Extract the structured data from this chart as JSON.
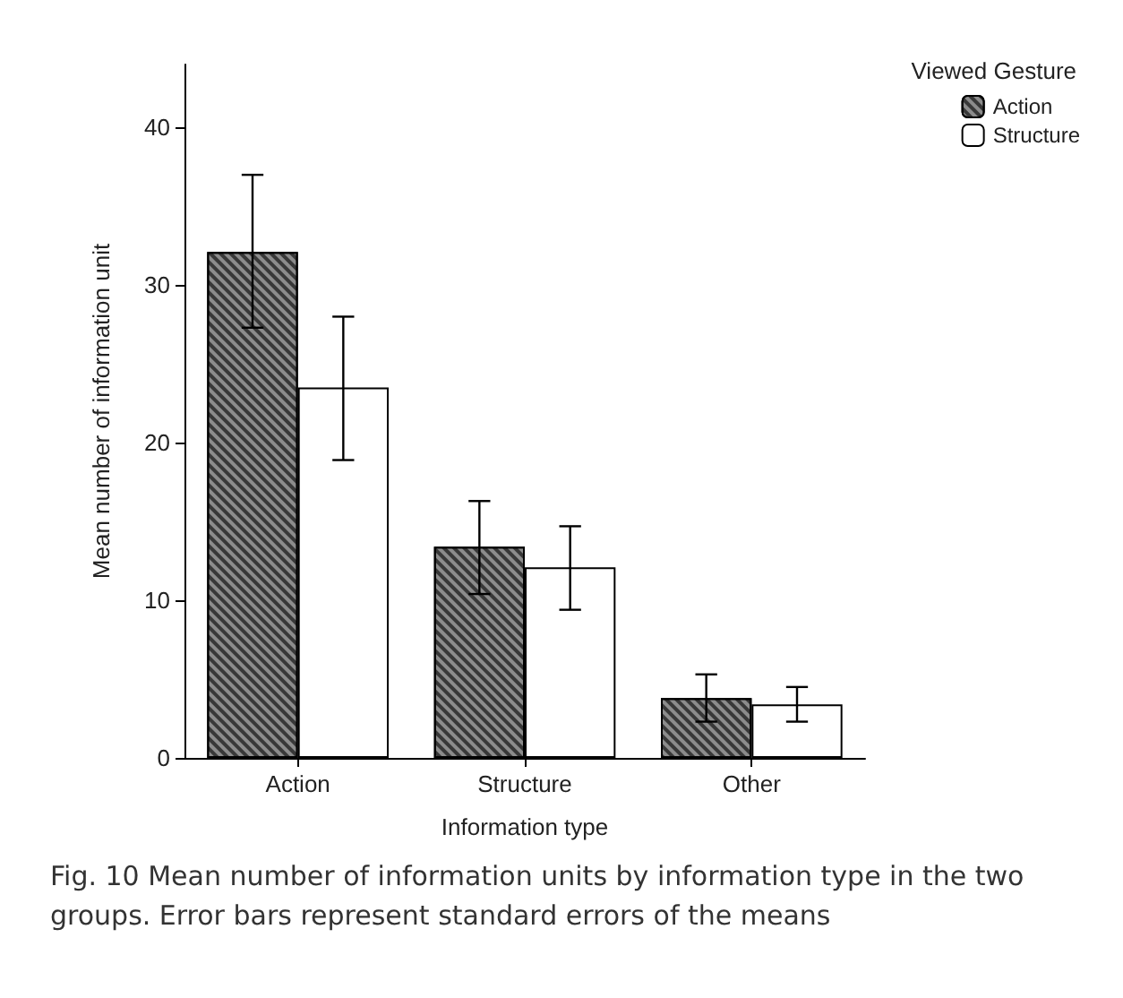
{
  "chart_data": {
    "type": "bar",
    "xlabel": "Information type",
    "ylabel": "Mean number of information unit",
    "legend_title": "Viewed Gesture",
    "categories": [
      "Action",
      "Structure",
      "Other"
    ],
    "series": [
      {
        "name": "Action",
        "color": "#8c8c8c",
        "values": [
          32.1,
          13.4,
          3.8
        ],
        "errors": [
          [
            27.3,
            37.0
          ],
          [
            10.4,
            16.3
          ],
          [
            2.3,
            5.3
          ]
        ]
      },
      {
        "name": "Structure",
        "color": "#ffffff",
        "values": [
          23.5,
          12.1,
          3.4
        ],
        "errors": [
          [
            18.9,
            28.0
          ],
          [
            9.4,
            14.7
          ],
          [
            2.3,
            4.5
          ]
        ]
      }
    ],
    "ylim": [
      0,
      44
    ],
    "yticks": [
      0,
      10,
      20,
      30,
      40
    ],
    "grid": false,
    "legend": "top right",
    "annotations": [
      "Fig. 10 Mean number of information units by information type in the two groups. Error bars represent standard errors of the means"
    ]
  }
}
